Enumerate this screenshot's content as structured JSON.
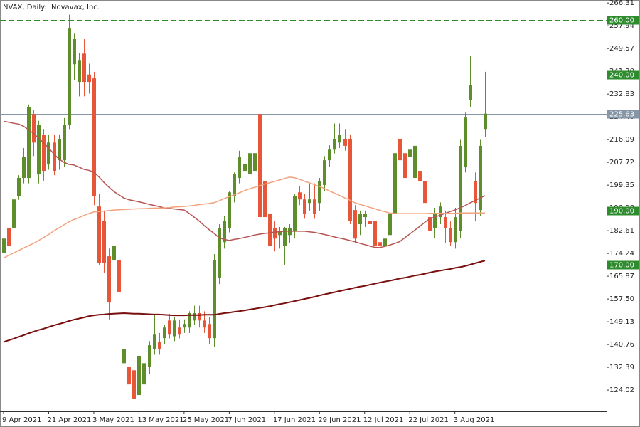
{
  "chart_data": {
    "type": "candlestick",
    "title": "NVAX, Daily:  Novavax, Inc.",
    "categories": [
      "9 Apr 2021",
      null,
      null,
      null,
      null,
      null,
      null,
      null,
      null,
      "21 Apr 2021",
      null,
      null,
      null,
      null,
      null,
      null,
      null,
      null,
      "3 May 2021",
      null,
      null,
      null,
      null,
      null,
      null,
      null,
      null,
      "13 May 2021",
      null,
      null,
      null,
      null,
      null,
      null,
      null,
      null,
      "25 May 2021",
      null,
      null,
      null,
      null,
      null,
      null,
      null,
      null,
      "7 Jun 2021",
      null,
      null,
      null,
      null,
      null,
      null,
      null,
      null,
      "17 Jun 2021",
      null,
      null,
      null,
      null,
      null,
      null,
      null,
      null,
      "29 Jun 2021",
      null,
      null,
      null,
      null,
      null,
      null,
      null,
      null,
      "12 Jul 2021",
      null,
      null,
      null,
      null,
      null,
      null,
      null,
      null,
      "22 Jul 2021",
      null,
      null,
      null,
      null,
      null,
      null,
      null,
      null,
      "3 Aug 2021",
      null,
      null,
      null,
      null,
      null,
      null
    ],
    "open": [
      174.5,
      183.7,
      183.7,
      195.4,
      202,
      202,
      225.5,
      203.3,
      217.7,
      207.2,
      215,
      208.5,
      208.5,
      221.6,
      243.8,
      237.3,
      247.7,
      240,
      238.6,
      191.5,
      186.3,
      173.2,
      171.9,
      171.9,
      133.9,
      132.6,
      131.3,
      122.2,
      126.1,
      132.6,
      139.2,
      141.8,
      143.1,
      149.6,
      143.8,
      147,
      147,
      147,
      149.6,
      152.3,
      149.6,
      148.3,
      143.1,
      165.4,
      178.4,
      183.7,
      195.4,
      202,
      204.6,
      203.3,
      204.6,
      225.5,
      200.7,
      188.9,
      183.7,
      181,
      177.1,
      181,
      182.4,
      196.7,
      194.1,
      192.8,
      194.1,
      192.8,
      199.4,
      208.5,
      212.4,
      215,
      216.4,
      216.4,
      190.2,
      185,
      187.6,
      186.3,
      186.3,
      178.4,
      177.1,
      181,
      188.9,
      216.4,
      211.1,
      209.8,
      202,
      204.6,
      200.7,
      187.6,
      183.7,
      187.6,
      187.6,
      183.7,
      178.4,
      182.4,
      205.9,
      230.7,
      200.7,
      190.2,
      220
    ],
    "high": [
      181,
      186,
      196.7,
      203,
      213,
      229,
      227,
      223,
      220,
      218,
      218,
      218,
      224,
      262,
      255,
      248,
      253,
      244,
      241,
      196,
      190,
      176,
      177,
      174,
      146,
      136,
      134,
      140,
      138,
      142,
      152,
      145,
      148,
      152,
      151,
      150,
      150,
      153,
      155,
      155,
      153,
      151,
      174,
      185,
      188,
      197,
      204,
      212,
      212,
      214,
      214,
      229.5,
      202,
      191,
      186,
      184,
      184,
      185,
      196,
      199,
      196,
      200,
      200,
      202,
      210,
      214,
      222,
      222,
      220,
      218,
      192,
      190,
      190,
      189,
      189,
      180,
      182,
      190,
      219,
      230.7,
      216,
      214,
      214,
      207,
      203,
      192,
      191,
      193,
      190,
      186,
      191,
      216,
      226,
      246.9,
      204,
      216,
      241
    ],
    "low": [
      173,
      177,
      182.4,
      194,
      200,
      200,
      210,
      200,
      201,
      205,
      203,
      205,
      206,
      220,
      238,
      232,
      232,
      233,
      192,
      170,
      167,
      150,
      168,
      158,
      127,
      122,
      117,
      120,
      124,
      130,
      137,
      137,
      141,
      143,
      142,
      143,
      145,
      145,
      148,
      147,
      145,
      141,
      140,
      163,
      176,
      182,
      193,
      200,
      203,
      201,
      202,
      186,
      185,
      169,
      175,
      176,
      170,
      178,
      180,
      192,
      187,
      190,
      187,
      190,
      197,
      206,
      211,
      213,
      212,
      185,
      178,
      181,
      184,
      182,
      176,
      175,
      175,
      179,
      186,
      207,
      200,
      206,
      198,
      198,
      190,
      172,
      180,
      185,
      178,
      177,
      176,
      180,
      204,
      228,
      186,
      188,
      217
    ],
    "close": [
      179.7,
      177.1,
      194.1,
      202,
      209.8,
      228.1,
      215,
      221.6,
      204.6,
      215,
      204.6,
      216.4,
      221.6,
      256.9,
      253,
      245.1,
      237.3,
      237.3,
      195.4,
      170.6,
      170.6,
      156.2,
      177.1,
      160.1,
      139.2,
      126.1,
      120.9,
      136.6,
      133.9,
      140.5,
      144.4,
      139.2,
      147,
      144.4,
      149.6,
      144.4,
      148.3,
      152.3,
      152.3,
      149.6,
      147,
      143.1,
      171.9,
      183.7,
      186.3,
      196.7,
      203.3,
      209.8,
      207.2,
      211.1,
      211.1,
      187.6,
      187.6,
      177.1,
      179.7,
      182.4,
      183.7,
      183.7,
      195.4,
      194.1,
      188.9,
      194.1,
      188.9,
      200.7,
      208.5,
      212.4,
      216.4,
      217.7,
      213.8,
      186.3,
      179.7,
      188.9,
      188.9,
      185,
      177.1,
      177.1,
      179.7,
      188.9,
      211.1,
      208.5,
      202,
      212.4,
      213.8,
      200.7,
      192.8,
      182.4,
      188.9,
      191.5,
      183.7,
      178.4,
      187.6,
      213.8,
      224.2,
      236,
      192.8,
      213.8,
      225.63
    ],
    "up_color": "#5e8e2c",
    "down_color": "#e8563a",
    "lines": [
      {
        "color": "#b55450",
        "values": [
          222.8,
          222.5,
          222.1,
          221.8,
          221.0,
          219.7,
          218.3,
          216.6,
          214.8,
          213.0,
          210.9,
          209.0,
          207.8,
          207.0,
          206.8,
          206.0,
          205.2,
          204.8,
          204.1,
          202.4,
          200.4,
          198.6,
          197.0,
          195.8,
          194.6,
          194.0,
          193.6,
          193.2,
          192.8,
          192.3,
          191.9,
          191.5,
          191.0,
          190.8,
          190.6,
          190.4,
          190.2,
          189.0,
          187.6,
          186.2,
          184.5,
          183.0,
          181.6,
          180.0,
          179.4,
          179.0,
          179.4,
          179.7,
          180.1,
          180.5,
          181.0,
          181.3,
          181.6,
          181.8,
          182.1,
          182.2,
          182.4,
          182.4,
          182.4,
          182.4,
          182.4,
          182.2,
          182.0,
          181.6,
          181.2,
          180.8,
          180.3,
          179.9,
          179.5,
          179.0,
          178.6,
          178.0,
          177.5,
          177.0,
          176.5,
          176.4,
          176.8,
          177.3,
          177.9,
          178.6,
          180.0,
          181.4,
          182.8,
          184.2,
          185.7,
          187.0,
          187.6,
          188.3,
          188.9,
          189.6,
          190.2,
          191.0,
          191.8,
          192.8,
          193.7,
          194.6,
          195.5
        ]
      },
      {
        "color": "#f3a27e",
        "values": [
          172.6,
          173.5,
          174.4,
          175.3,
          176.2,
          177.1,
          178.0,
          179.0,
          180.1,
          181.2,
          182.5,
          183.6,
          184.7,
          185.8,
          186.7,
          187.4,
          188.2,
          188.9,
          189.5,
          189.6,
          189.8,
          190.0,
          190.2,
          190.3,
          190.4,
          190.5,
          190.6,
          190.7,
          190.7,
          190.8,
          190.9,
          190.9,
          191.0,
          191.1,
          191.3,
          191.4,
          191.5,
          191.7,
          191.9,
          192.2,
          192.4,
          192.6,
          192.9,
          193.6,
          194.4,
          195.1,
          195.8,
          196.5,
          197.3,
          198.0,
          198.5,
          199.1,
          199.7,
          200.2,
          200.7,
          201.2,
          201.8,
          202.3,
          202.1,
          201.5,
          200.8,
          200.2,
          199.5,
          198.9,
          198.1,
          197.2,
          196.4,
          195.6,
          194.7,
          193.9,
          192.9,
          192.3,
          191.8,
          191.2,
          190.7,
          190.1,
          189.6,
          189.1,
          188.9,
          188.9,
          188.9,
          188.9,
          188.9,
          188.9,
          188.9,
          189.0,
          189.0,
          189.0,
          189.0,
          189.0,
          189.0,
          189.1,
          189.1,
          189.1,
          189.1,
          189.1,
          189.1
        ]
      },
      {
        "color": "#7a0f0f",
        "values": [
          141.7,
          142.3,
          142.9,
          143.6,
          144.2,
          144.9,
          145.5,
          146.1,
          146.6,
          147.2,
          147.8,
          148.3,
          148.8,
          149.4,
          149.9,
          150.3,
          150.7,
          151.2,
          151.5,
          151.7,
          151.8,
          152.0,
          152.1,
          152.2,
          152.3,
          152.2,
          152.1,
          152.1,
          152.0,
          151.9,
          151.8,
          151.8,
          151.7,
          151.6,
          151.5,
          151.5,
          151.5,
          151.6,
          151.6,
          151.6,
          151.7,
          151.7,
          151.7,
          152.0,
          152.3,
          152.5,
          152.8,
          153.0,
          153.3,
          153.6,
          153.9,
          154.2,
          154.5,
          154.8,
          155.2,
          155.6,
          155.9,
          156.3,
          156.7,
          157.1,
          157.5,
          157.9,
          158.3,
          158.8,
          159.2,
          159.6,
          160.0,
          160.4,
          160.8,
          161.2,
          161.6,
          162.0,
          162.3,
          162.7,
          163.1,
          163.5,
          163.9,
          164.2,
          164.6,
          165.0,
          165.3,
          165.7,
          166.1,
          166.4,
          166.8,
          167.2,
          167.6,
          167.9,
          168.2,
          168.5,
          168.9,
          169.2,
          169.6,
          170.1,
          170.6,
          171.1,
          171.6
        ]
      }
    ],
    "levels": [
      {
        "value": 260,
        "label": "260.00"
      },
      {
        "value": 240,
        "label": "240.00"
      },
      {
        "value": 190,
        "label": "190.00"
      },
      {
        "value": 170,
        "label": "170.00"
      }
    ],
    "level_color": "#2e8b2e",
    "current_price": {
      "value": 225.63,
      "label": "225.63"
    },
    "current_color": "#8796a6",
    "ylim": [
      116.2,
      267.4
    ],
    "yticks": [
      124.02,
      132.39,
      140.76,
      149.13,
      {
        "value": 157.5,
        "label": "157.50"
      },
      165.87,
      174.24,
      182.61,
      190.98,
      199.35,
      207.72,
      216.09,
      224.46,
      232.83,
      {
        "value": 241.2,
        "label": "241.20"
      },
      249.57,
      257.94,
      266.31
    ]
  }
}
